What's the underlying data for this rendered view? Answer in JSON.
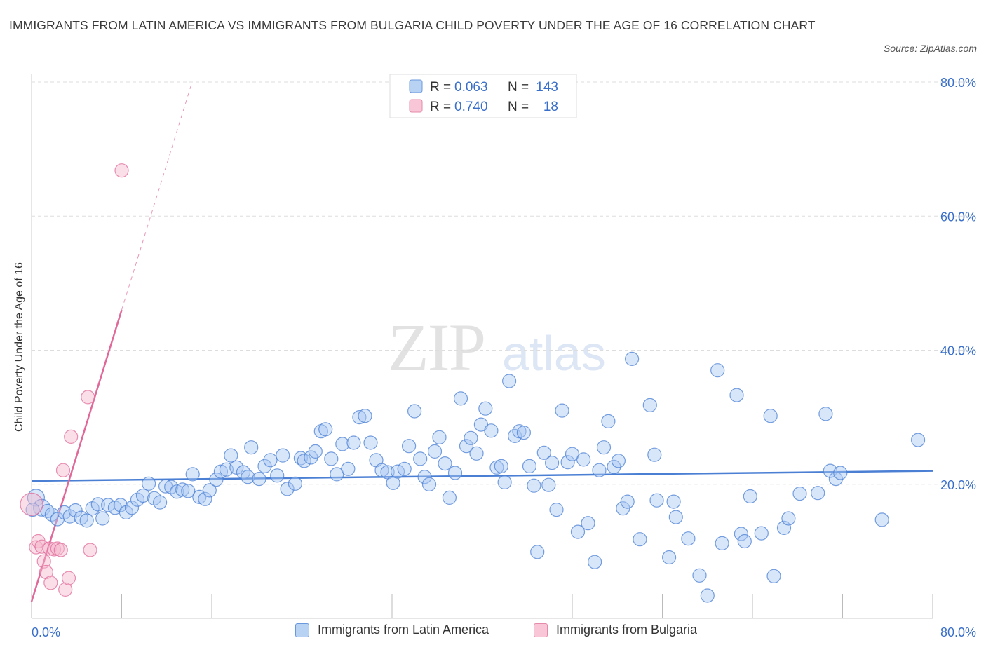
{
  "title": "IMMIGRANTS FROM LATIN AMERICA VS IMMIGRANTS FROM BULGARIA CHILD POVERTY UNDER THE AGE OF 16 CORRELATION CHART",
  "source": "Source: ZipAtlas.com",
  "watermark": {
    "zip": "ZIP",
    "atlas": "atlas"
  },
  "colors": {
    "blue": "#4a7fd4",
    "blue_fill": "#a9c8f2",
    "pink": "#e0699a",
    "pink_fill": "#f4b8cc",
    "tick_text": "#3a6fc9",
    "grid": "#dddddd"
  },
  "legend_top": [
    {
      "r_label": "R =",
      "r_value": "0.063",
      "n_label": "N =",
      "n_value": "143"
    },
    {
      "r_label": "R =",
      "r_value": "0.740",
      "n_label": "N =",
      "n_value": "18"
    }
  ],
  "chart_data": {
    "type": "scatter",
    "ylabel": "Child Poverty Under the Age of 16",
    "xlim": [
      0,
      80
    ],
    "ylim": [
      0,
      80
    ],
    "x_tick_labels": [
      "0.0%",
      "80.0%"
    ],
    "y_ticks": [
      20,
      40,
      60,
      80
    ],
    "y_tick_labels": [
      "20.0%",
      "40.0%",
      "60.0%",
      "80.0%"
    ],
    "grid": true,
    "legend_position": "top-center",
    "series": [
      {
        "name": "Immigrants from Latin America",
        "color": "#4a7fd4",
        "trend": {
          "x": [
            0,
            80
          ],
          "y": [
            20.5,
            22.0
          ],
          "style": "solid"
        },
        "points": [
          [
            0.4,
            18.0
          ],
          [
            0.9,
            16.5
          ],
          [
            1.4,
            16.0
          ],
          [
            1.8,
            15.5
          ],
          [
            2.3,
            14.8
          ],
          [
            2.9,
            15.8
          ],
          [
            3.4,
            15.2
          ],
          [
            3.9,
            16.1
          ],
          [
            4.4,
            15.0
          ],
          [
            4.9,
            14.6
          ],
          [
            5.4,
            16.4
          ],
          [
            5.9,
            17.0
          ],
          [
            6.3,
            14.9
          ],
          [
            6.8,
            16.9
          ],
          [
            7.4,
            16.5
          ],
          [
            7.9,
            16.9
          ],
          [
            8.4,
            15.8
          ],
          [
            8.9,
            16.5
          ],
          [
            9.4,
            17.7
          ],
          [
            9.9,
            18.3
          ],
          [
            10.4,
            20.1
          ],
          [
            10.9,
            17.9
          ],
          [
            11.4,
            17.3
          ],
          [
            11.9,
            19.7
          ],
          [
            12.4,
            19.6
          ],
          [
            12.9,
            18.9
          ],
          [
            13.4,
            19.2
          ],
          [
            13.9,
            19.0
          ],
          [
            14.3,
            21.5
          ],
          [
            14.9,
            18.1
          ],
          [
            15.4,
            17.8
          ],
          [
            15.8,
            19.1
          ],
          [
            16.4,
            20.7
          ],
          [
            16.8,
            21.9
          ],
          [
            17.3,
            22.2
          ],
          [
            17.7,
            24.3
          ],
          [
            18.2,
            22.5
          ],
          [
            18.8,
            21.8
          ],
          [
            19.2,
            21.1
          ],
          [
            19.5,
            25.5
          ],
          [
            20.2,
            20.8
          ],
          [
            20.7,
            22.7
          ],
          [
            21.2,
            23.6
          ],
          [
            21.8,
            21.3
          ],
          [
            22.3,
            24.3
          ],
          [
            22.7,
            19.3
          ],
          [
            23.4,
            20.1
          ],
          [
            23.9,
            23.9
          ],
          [
            24.2,
            23.5
          ],
          [
            24.8,
            24.0
          ],
          [
            25.2,
            24.9
          ],
          [
            25.7,
            27.9
          ],
          [
            26.1,
            28.2
          ],
          [
            26.6,
            23.8
          ],
          [
            27.1,
            21.5
          ],
          [
            27.6,
            26.0
          ],
          [
            28.1,
            22.3
          ],
          [
            28.6,
            26.2
          ],
          [
            29.1,
            30.0
          ],
          [
            29.6,
            30.2
          ],
          [
            30.1,
            26.2
          ],
          [
            30.6,
            23.6
          ],
          [
            31.1,
            22.1
          ],
          [
            31.6,
            21.8
          ],
          [
            32.1,
            20.2
          ],
          [
            32.5,
            21.9
          ],
          [
            33.1,
            22.3
          ],
          [
            33.5,
            25.7
          ],
          [
            34.0,
            30.9
          ],
          [
            34.5,
            23.8
          ],
          [
            34.9,
            21.1
          ],
          [
            35.3,
            20.0
          ],
          [
            35.8,
            24.9
          ],
          [
            36.2,
            27.0
          ],
          [
            36.7,
            23.1
          ],
          [
            37.1,
            18.0
          ],
          [
            37.6,
            21.7
          ],
          [
            38.1,
            32.8
          ],
          [
            38.6,
            25.7
          ],
          [
            39.0,
            26.9
          ],
          [
            39.5,
            24.6
          ],
          [
            39.9,
            28.9
          ],
          [
            40.3,
            31.3
          ],
          [
            40.8,
            28.0
          ],
          [
            41.3,
            22.5
          ],
          [
            41.7,
            22.7
          ],
          [
            42.0,
            20.3
          ],
          [
            42.4,
            35.4
          ],
          [
            42.9,
            27.2
          ],
          [
            43.3,
            27.9
          ],
          [
            43.7,
            27.7
          ],
          [
            44.2,
            22.7
          ],
          [
            44.6,
            19.8
          ],
          [
            44.9,
            9.9
          ],
          [
            45.5,
            24.7
          ],
          [
            45.9,
            19.9
          ],
          [
            46.2,
            23.2
          ],
          [
            46.6,
            16.2
          ],
          [
            47.1,
            31.0
          ],
          [
            47.6,
            23.3
          ],
          [
            48.0,
            24.5
          ],
          [
            48.5,
            12.9
          ],
          [
            49.0,
            23.7
          ],
          [
            49.4,
            14.2
          ],
          [
            50.0,
            8.4
          ],
          [
            50.4,
            22.1
          ],
          [
            50.8,
            25.5
          ],
          [
            51.2,
            29.4
          ],
          [
            51.7,
            22.6
          ],
          [
            52.1,
            23.5
          ],
          [
            52.5,
            16.4
          ],
          [
            52.9,
            17.4
          ],
          [
            53.3,
            38.7
          ],
          [
            54.0,
            11.8
          ],
          [
            54.9,
            31.8
          ],
          [
            55.3,
            24.4
          ],
          [
            55.5,
            17.6
          ],
          [
            56.6,
            9.1
          ],
          [
            57.0,
            17.4
          ],
          [
            57.2,
            15.1
          ],
          [
            58.3,
            11.9
          ],
          [
            59.3,
            6.4
          ],
          [
            60.0,
            3.4
          ],
          [
            60.9,
            37.0
          ],
          [
            61.3,
            11.2
          ],
          [
            62.6,
            33.3
          ],
          [
            63.0,
            12.6
          ],
          [
            63.3,
            11.5
          ],
          [
            63.8,
            18.2
          ],
          [
            64.8,
            12.7
          ],
          [
            65.6,
            30.2
          ],
          [
            65.9,
            6.3
          ],
          [
            66.8,
            13.5
          ],
          [
            67.2,
            14.9
          ],
          [
            68.2,
            18.6
          ],
          [
            69.8,
            18.7
          ],
          [
            70.5,
            30.5
          ],
          [
            70.9,
            22.0
          ],
          [
            71.4,
            20.8
          ],
          [
            71.8,
            21.7
          ],
          [
            75.5,
            14.7
          ],
          [
            78.7,
            26.6
          ],
          [
            0.1,
            16.2
          ]
        ]
      },
      {
        "name": "Immigrants from Bulgaria",
        "color": "#e0699a",
        "trend": {
          "x": [
            0,
            8.0
          ],
          "y": [
            2.5,
            46.0
          ],
          "style": "solid",
          "extend_to_y": 80,
          "extend_style": "dashed"
        },
        "points": [
          [
            0.0,
            17.0
          ],
          [
            0.4,
            10.6
          ],
          [
            0.6,
            11.5
          ],
          [
            0.9,
            10.7
          ],
          [
            1.1,
            8.5
          ],
          [
            1.3,
            6.9
          ],
          [
            1.6,
            10.4
          ],
          [
            1.7,
            5.3
          ],
          [
            2.0,
            10.3
          ],
          [
            2.3,
            10.4
          ],
          [
            2.6,
            10.2
          ],
          [
            2.8,
            22.1
          ],
          [
            3.0,
            4.3
          ],
          [
            3.3,
            6.0
          ],
          [
            3.5,
            27.1
          ],
          [
            5.0,
            33.0
          ],
          [
            5.2,
            10.2
          ],
          [
            8.0,
            66.8
          ]
        ]
      }
    ]
  }
}
